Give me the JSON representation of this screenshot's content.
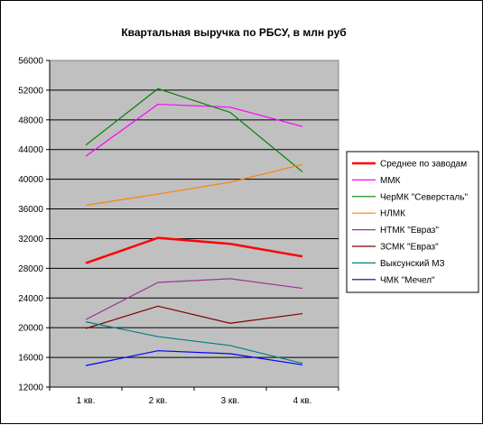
{
  "chart_data": {
    "type": "line",
    "title": "Квартальная выручка по РБСУ, в млн руб",
    "xlabel": "",
    "ylabel": "",
    "categories": [
      "1 кв.",
      "2 кв.",
      "3 кв.",
      "4 кв."
    ],
    "ylim": [
      12000,
      56000
    ],
    "ytick_step": 4000,
    "y_tick_labels": [
      "12000",
      "16000",
      "20000",
      "24000",
      "28000",
      "32000",
      "36000",
      "40000",
      "44000",
      "48000",
      "52000",
      "56000"
    ],
    "grid": true,
    "legend_position": "right",
    "plot_background": "#c0c0c0",
    "series": [
      {
        "name": "Среднее по заводам",
        "color": "#ff0000",
        "bold": true,
        "values": [
          28700,
          32100,
          31300,
          29600
        ]
      },
      {
        "name": "ММК",
        "color": "#ff00ff",
        "values": [
          43100,
          50100,
          49700,
          47100
        ]
      },
      {
        "name": "ЧерМК \"Северсталь\"",
        "color": "#008000",
        "values": [
          44600,
          52200,
          49000,
          41000
        ]
      },
      {
        "name": "НЛМК",
        "color": "#ff8000",
        "values": [
          36500,
          38000,
          39600,
          42000
        ]
      },
      {
        "name": "НТМК \"Евраз\"",
        "color": "#993399",
        "values": [
          21100,
          26100,
          26600,
          25300
        ]
      },
      {
        "name": "ЗСМК \"Евраз\"",
        "color": "#800000",
        "values": [
          19900,
          22900,
          20600,
          21900
        ]
      },
      {
        "name": "Выксунский МЗ",
        "color": "#008080",
        "values": [
          20800,
          18800,
          17600,
          15200
        ]
      },
      {
        "name": "ЧМК \"Мечел\"",
        "color": "#000080",
        "values": [
          null,
          null,
          null,
          null
        ]
      },
      {
        "name": "",
        "color": "#0000ff",
        "values": [
          14900,
          16900,
          16500,
          15000
        ]
      }
    ]
  }
}
